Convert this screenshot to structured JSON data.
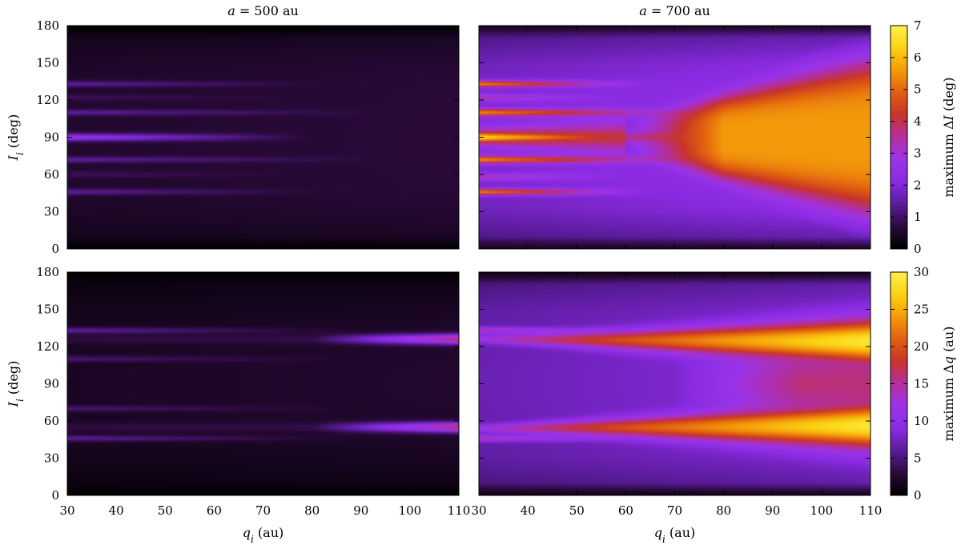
{
  "chart_data": [
    {
      "type": "heatmap",
      "title": "a = 500 au",
      "quantity": "max_dI",
      "xlabel": "q_i (au)",
      "ylabel": "I_i (deg)",
      "xlim": [
        30,
        110
      ],
      "ylim": [
        0,
        180
      ],
      "x_ticks": [
        30,
        40,
        50,
        60,
        70,
        80,
        90,
        100,
        110
      ],
      "y_ticks": [
        0,
        30,
        60,
        90,
        120,
        150,
        180
      ],
      "z_range": [
        0,
        7
      ],
      "base_profile": [
        [
          0,
          0.0
        ],
        [
          1,
          0.4
        ],
        [
          3,
          0.55
        ],
        [
          5,
          0.62
        ],
        [
          8,
          0.64
        ]
      ],
      "bands": [
        {
          "inclination": 133,
          "width": 2.5,
          "amplitude": 0.9,
          "x_fade_end": 85
        },
        {
          "inclination": 122,
          "width": 3.0,
          "amplitude": 0.4,
          "x_fade_end": 80
        },
        {
          "inclination": 110,
          "width": 2.5,
          "amplitude": 0.9,
          "x_fade_end": 95
        },
        {
          "inclination": 90,
          "width": 3.0,
          "amplitude": 2.0,
          "x_fade_end": 80
        },
        {
          "inclination": 72,
          "width": 2.5,
          "amplitude": 0.9,
          "x_fade_end": 95
        },
        {
          "inclination": 60,
          "width": 3.0,
          "amplitude": 0.4,
          "x_fade_end": 80
        },
        {
          "inclination": 46,
          "width": 2.5,
          "amplitude": 0.9,
          "x_fade_end": 85
        }
      ]
    },
    {
      "type": "heatmap",
      "title": "a = 700 au",
      "quantity": "max_dI",
      "xlabel": "q_i (au)",
      "ylabel": "I_i (deg)",
      "xlim": [
        30,
        110
      ],
      "ylim": [
        0,
        180
      ],
      "x_ticks": [
        30,
        40,
        50,
        60,
        70,
        80,
        90,
        100,
        110
      ],
      "y_ticks": [
        0,
        30,
        60,
        90,
        120,
        150,
        180
      ],
      "z_range": [
        0,
        7
      ],
      "base_profile": [
        [
          0,
          0.4
        ],
        [
          1,
          1.5
        ],
        [
          3,
          2.0
        ],
        [
          5,
          2.2
        ],
        [
          8,
          2.3
        ]
      ],
      "wedge": {
        "center": 90,
        "x_start": 60,
        "x_end": 110,
        "half_width_start": 15,
        "half_width_end": 60,
        "peak": 5.6
      },
      "bands": [
        {
          "inclination": 133,
          "width": 2.5,
          "amplitude": 3.5,
          "x_fade_end": 65
        },
        {
          "inclination": 122,
          "width": 3.0,
          "amplitude": 1.4,
          "x_fade_end": 60
        },
        {
          "inclination": 110,
          "width": 3.0,
          "amplitude": 3.5,
          "x_fade_end": 75
        },
        {
          "inclination": 90,
          "width": 4.0,
          "amplitude": 4.5,
          "x_fade_end": 75
        },
        {
          "inclination": 72,
          "width": 3.0,
          "amplitude": 3.5,
          "x_fade_end": 75
        },
        {
          "inclination": 58,
          "width": 3.0,
          "amplitude": 1.4,
          "x_fade_end": 60
        },
        {
          "inclination": 46,
          "width": 2.5,
          "amplitude": 3.5,
          "x_fade_end": 65
        }
      ]
    },
    {
      "type": "heatmap",
      "title": "",
      "quantity": "max_dq",
      "xlabel": "q_i (au)",
      "ylabel": "I_i (deg)",
      "xlim": [
        30,
        110
      ],
      "ylim": [
        0,
        180
      ],
      "x_ticks": [
        30,
        40,
        50,
        60,
        70,
        80,
        90,
        100,
        110
      ],
      "y_ticks": [
        0,
        30,
        60,
        90,
        120,
        150,
        180
      ],
      "z_range": [
        0,
        30
      ],
      "base_profile": [
        [
          0,
          0.0
        ],
        [
          1,
          1.0
        ],
        [
          3,
          1.6
        ],
        [
          5,
          2.0
        ],
        [
          8,
          2.2
        ]
      ],
      "bands": [
        {
          "inclination": 133,
          "width": 2.5,
          "amplitude": 4.5,
          "x_fade_end": 90
        },
        {
          "inclination": 126,
          "width": 4.0,
          "amplitude": 5.0,
          "x_ramp_start": 80,
          "x_ramp_peak": 14
        },
        {
          "inclination": 110,
          "width": 2.5,
          "amplitude": 3.0,
          "x_fade_end": 90
        },
        {
          "inclination": 70,
          "width": 2.5,
          "amplitude": 3.0,
          "x_fade_end": 90
        },
        {
          "inclination": 55,
          "width": 4.0,
          "amplitude": 5.0,
          "x_ramp_start": 80,
          "x_ramp_peak": 14
        },
        {
          "inclination": 46,
          "width": 2.5,
          "amplitude": 4.5,
          "x_fade_end": 90
        }
      ]
    },
    {
      "type": "heatmap",
      "title": "",
      "quantity": "max_dq",
      "xlabel": "q_i (au)",
      "ylabel": "I_i (deg)",
      "xlim": [
        30,
        110
      ],
      "ylim": [
        0,
        180
      ],
      "x_ticks": [
        30,
        40,
        50,
        60,
        70,
        80,
        90,
        100,
        110
      ],
      "y_ticks": [
        0,
        30,
        60,
        90,
        120,
        150,
        180
      ],
      "z_range": [
        0,
        30
      ],
      "base_profile": [
        [
          0,
          1.0
        ],
        [
          1,
          6.0
        ],
        [
          3,
          7.5
        ],
        [
          5,
          8.0
        ],
        [
          8,
          8.3
        ]
      ],
      "branches": [
        {
          "i_start": 126,
          "i_end": 124,
          "x_start": 30,
          "x_end": 110,
          "peak_start": 12,
          "peak_end": 29
        },
        {
          "i_start": 54,
          "i_end": 56,
          "x_start": 30,
          "x_end": 110,
          "peak_start": 12,
          "peak_end": 29
        }
      ],
      "center_glow": {
        "center": 90,
        "x_start": 70,
        "peak": 16
      },
      "bands": [
        {
          "inclination": 133,
          "width": 2.5,
          "amplitude": 8.0,
          "x_fade_end": 60
        },
        {
          "inclination": 46,
          "width": 2.5,
          "amplitude": 8.0,
          "x_fade_end": 60
        }
      ]
    }
  ],
  "colorbars": [
    {
      "label": "maximum ΔI (deg)",
      "ticks": [
        0,
        1,
        2,
        3,
        4,
        5,
        6,
        7
      ],
      "range": [
        0,
        7
      ]
    },
    {
      "label": "maximum Δq (au)",
      "ticks": [
        0,
        5,
        10,
        15,
        20,
        25,
        30
      ],
      "range": [
        0,
        30
      ]
    }
  ],
  "colormap_stops": [
    "#000000",
    "#2a0a3a",
    "#5a1c9a",
    "#8a2be2",
    "#9b34e8",
    "#b32fa0",
    "#c8342a",
    "#e06010",
    "#f49a0a",
    "#fbd214",
    "#fff04a"
  ]
}
